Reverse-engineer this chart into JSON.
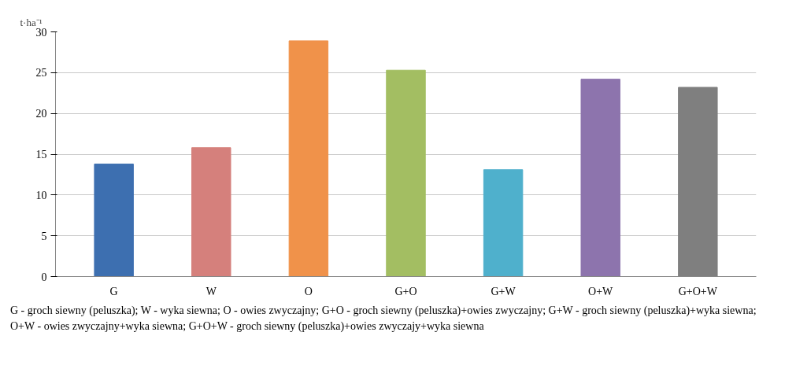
{
  "chart_data": {
    "type": "bar",
    "ylabel": "t·ha⁻¹",
    "categories": [
      "G",
      "W",
      "O",
      "G+O",
      "G+W",
      "O+W",
      "G+O+W"
    ],
    "values": [
      13.8,
      15.8,
      28.9,
      25.3,
      13.1,
      24.2,
      23.2
    ],
    "colors": [
      "#3d6fb0",
      "#d5807c",
      "#f0924a",
      "#a3be62",
      "#4fb0cc",
      "#8d74ad",
      "#7f7f7f"
    ],
    "ylim": [
      0,
      30
    ],
    "yticks": [
      0,
      5,
      10,
      15,
      20,
      25,
      30
    ],
    "grid": "y",
    "annotations": [
      "G - groch siewny (peluszka);  W - wyka siewna;  O - owies zwyczajny;  G+O - groch siewny (peluszka)+owies zwyczajny; G+W - groch siewny (peluszka)+wyka siewna; O+W - owies zwyczajny+wyka siewna; G+O+W - groch siewny (peluszka)+owies zwyczajy+wyka siewna"
    ]
  }
}
